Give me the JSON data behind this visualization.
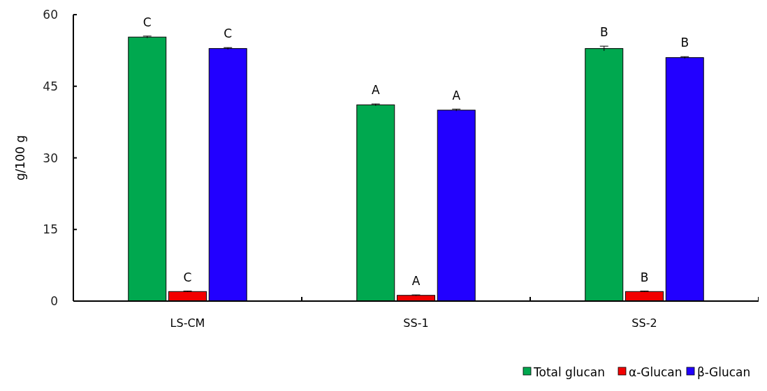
{
  "chart_data": {
    "type": "bar",
    "ylabel": "g/100 g",
    "categories": [
      "LS-CM",
      "SS-1",
      "SS-2"
    ],
    "ylim": [
      0,
      60
    ],
    "yticks": [
      0,
      15,
      30,
      45,
      60
    ],
    "grid": false,
    "legend": "bottom right",
    "series": [
      {
        "name": "Total glucan",
        "color": "#00a84f",
        "values": [
          55.3,
          41.1,
          52.9
        ],
        "errors": [
          0.2,
          0.2,
          0.5
        ],
        "value_labels": [
          "C",
          "A",
          "B"
        ]
      },
      {
        "name": "α-Glucan",
        "color": "#f20000",
        "values": [
          2.0,
          1.2,
          2.0
        ],
        "errors": [
          0.1,
          0.1,
          0.1
        ],
        "value_labels": [
          "C",
          "A",
          "B"
        ]
      },
      {
        "name": "β-Glucan",
        "color": "#2200ff",
        "values": [
          52.9,
          40.0,
          51.0
        ],
        "errors": [
          0.2,
          0.2,
          0.2
        ],
        "value_labels": [
          "C",
          "A",
          "B"
        ]
      }
    ]
  }
}
